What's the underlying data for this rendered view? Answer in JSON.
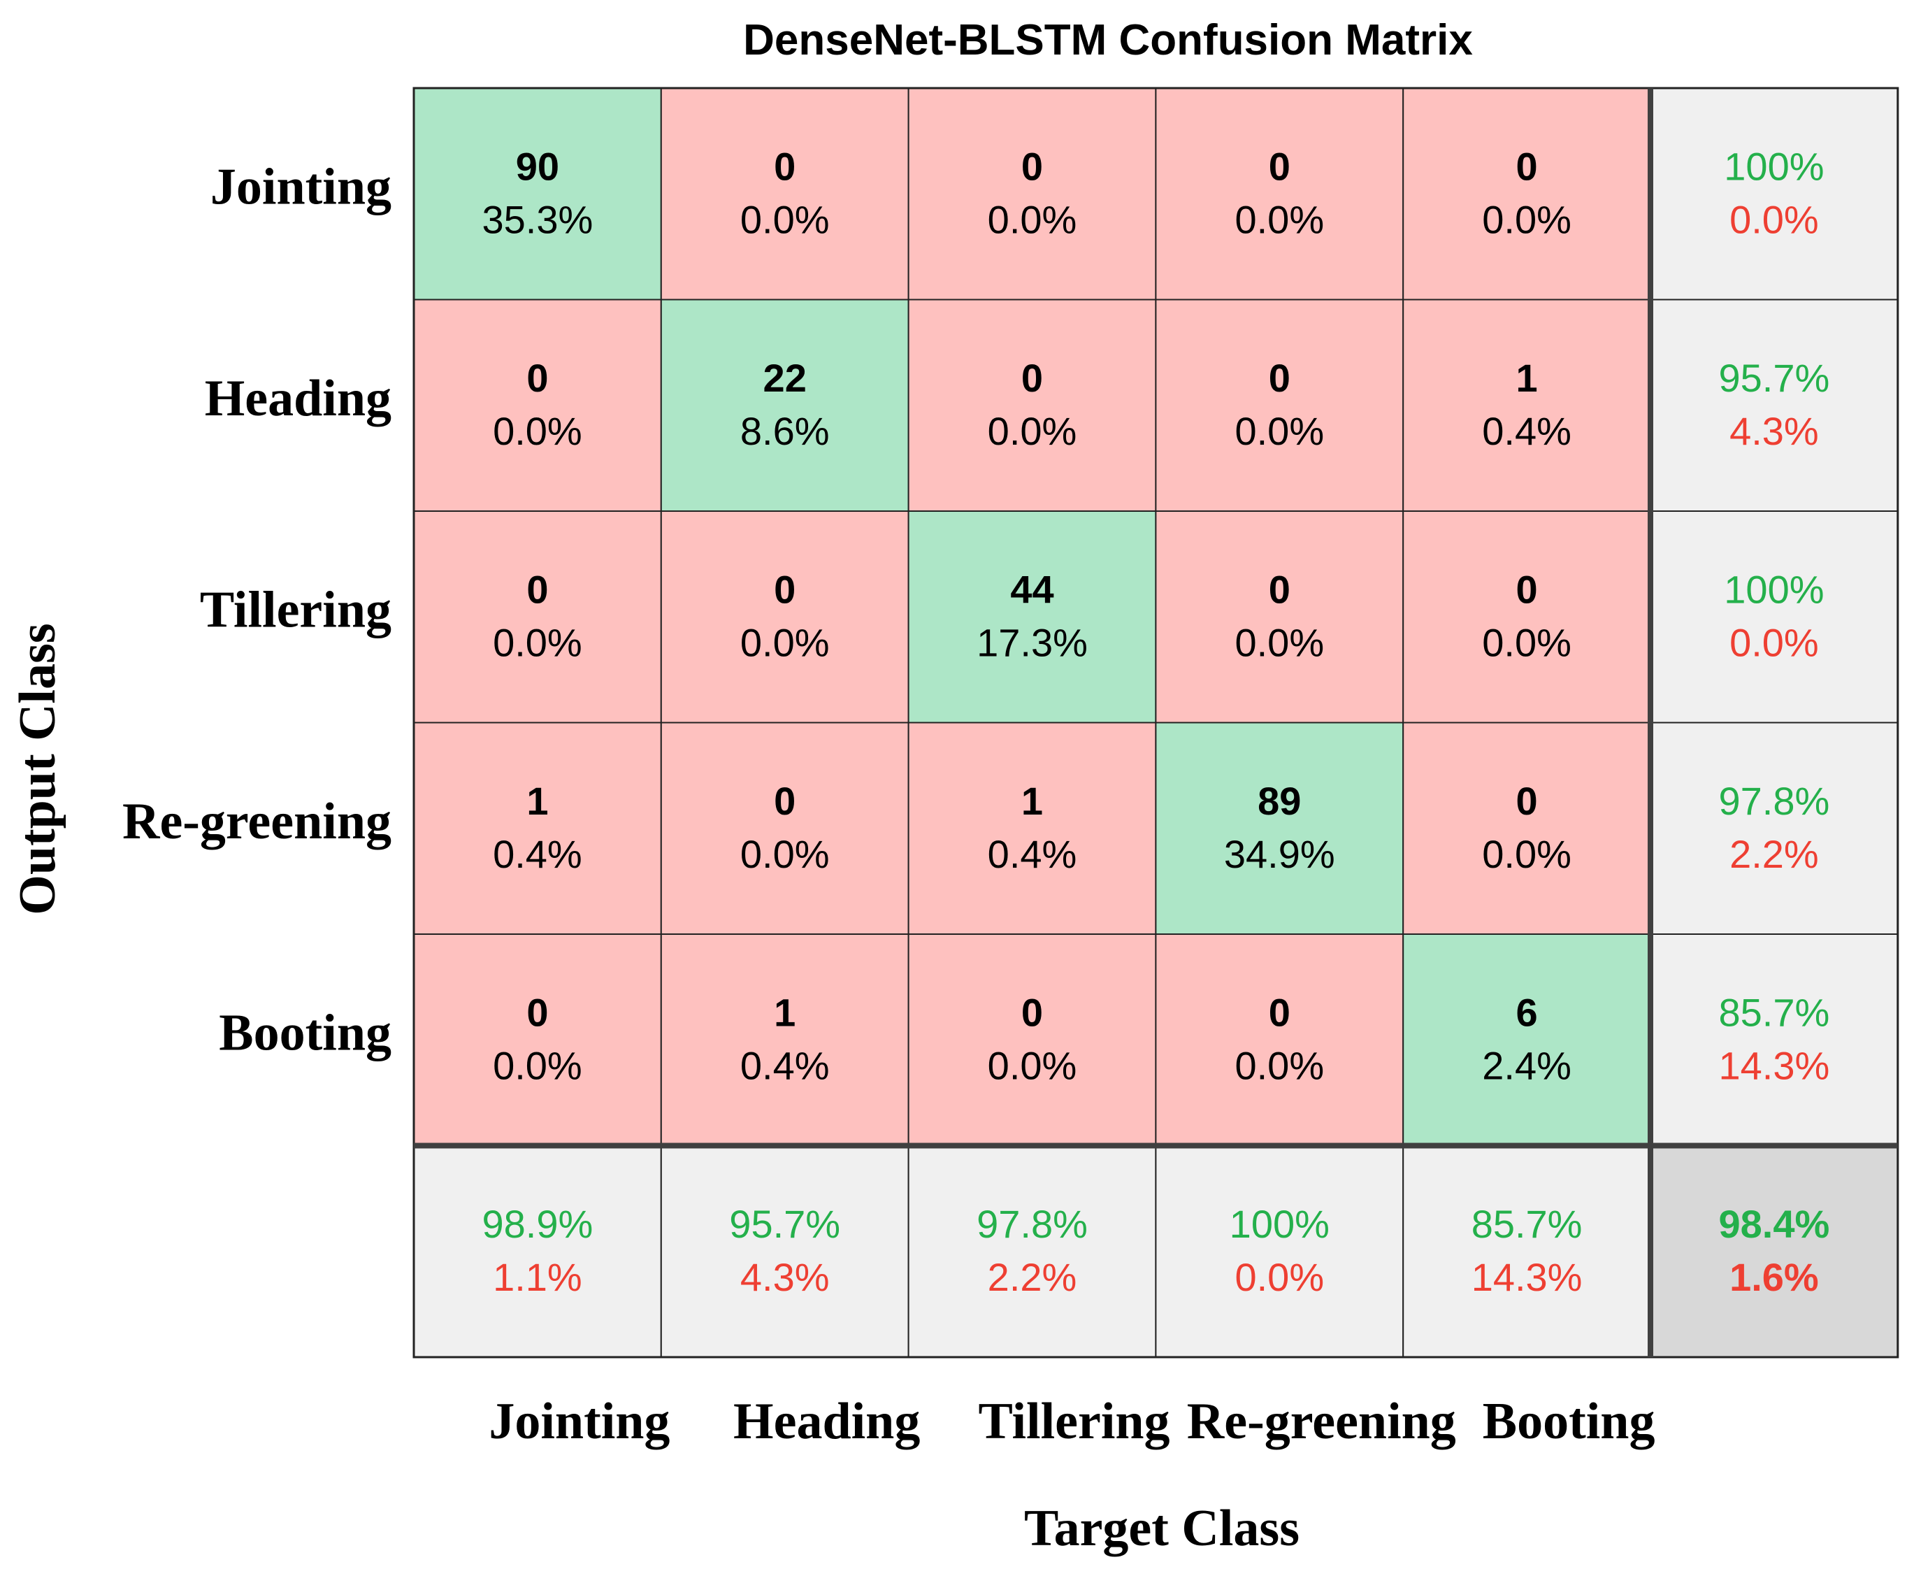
{
  "chart_data": {
    "type": "heatmap",
    "title": "DenseNet-BLSTM Confusion Matrix",
    "xlabel": "Target Class",
    "ylabel": "Output Class",
    "classes": [
      "Jointing",
      "Heading",
      "Tillering",
      "Re-greening",
      "Booting"
    ],
    "matrix": [
      [
        90,
        0,
        0,
        0,
        0
      ],
      [
        0,
        22,
        0,
        0,
        1
      ],
      [
        0,
        0,
        44,
        0,
        0
      ],
      [
        1,
        0,
        1,
        89,
        0
      ],
      [
        0,
        1,
        0,
        0,
        6
      ]
    ],
    "cell_percent": [
      [
        "35.3%",
        "0.0%",
        "0.0%",
        "0.0%",
        "0.0%"
      ],
      [
        "0.0%",
        "8.6%",
        "0.0%",
        "0.0%",
        "0.4%"
      ],
      [
        "0.0%",
        "0.0%",
        "17.3%",
        "0.0%",
        "0.0%"
      ],
      [
        "0.4%",
        "0.0%",
        "0.4%",
        "34.9%",
        "0.0%"
      ],
      [
        "0.0%",
        "0.4%",
        "0.0%",
        "0.0%",
        "2.4%"
      ]
    ],
    "row_summary": [
      {
        "correct": "100%",
        "error": "0.0%"
      },
      {
        "correct": "95.7%",
        "error": "4.3%"
      },
      {
        "correct": "100%",
        "error": "0.0%"
      },
      {
        "correct": "97.8%",
        "error": "2.2%"
      },
      {
        "correct": "85.7%",
        "error": "14.3%"
      }
    ],
    "column_summary": [
      {
        "correct": "98.9%",
        "error": "1.1%"
      },
      {
        "correct": "95.7%",
        "error": "4.3%"
      },
      {
        "correct": "97.8%",
        "error": "2.2%"
      },
      {
        "correct": "100%",
        "error": "0.0%"
      },
      {
        "correct": "85.7%",
        "error": "14.3%"
      }
    ],
    "overall": {
      "correct": "98.4%",
      "error": "1.6%"
    }
  },
  "colors": {
    "diagonal": "#ade6c7",
    "off_diagonal": "#fec1bf",
    "summary": "#f0f0f0",
    "overall": "#d8d8d8",
    "good_text": "#24b04b",
    "bad_text": "#ee3f32",
    "grid": "#222222",
    "thick_grid": "#404040"
  }
}
